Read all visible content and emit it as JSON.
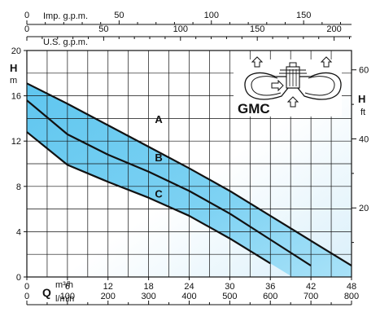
{
  "chart_data": {
    "type": "line",
    "model": "GMC",
    "x": {
      "label": "Q",
      "ticks_m3h": [
        "0",
        "6",
        "12",
        "18",
        "24",
        "30",
        "36",
        "42",
        "48"
      ],
      "unit_m3h": "m³/h",
      "ticks_lmin": [
        "0",
        "100",
        "200",
        "300",
        "400",
        "500",
        "600",
        "700",
        "800"
      ],
      "unit_lmin": "l/min",
      "range_m3h": [
        0,
        48
      ]
    },
    "top_scales": [
      {
        "label": "Imp. g.p.m.",
        "ticks": [
          "0",
          "50",
          "100",
          "150"
        ],
        "range": [
          0,
          175.95
        ]
      },
      {
        "label": "U.S. g.p.m.",
        "ticks": [
          "0",
          "50",
          "100",
          "150",
          "200"
        ],
        "range": [
          0,
          211.34
        ]
      }
    ],
    "y_left": {
      "label": "H",
      "unit": "m",
      "ticks": [
        "0",
        "4",
        "8",
        "12",
        "16",
        "20"
      ],
      "range": [
        0,
        20
      ]
    },
    "y_right": {
      "label": "H",
      "unit": "ft",
      "ticks": [
        "20",
        "40",
        "60"
      ],
      "range": [
        0,
        65.6
      ]
    },
    "grid": true,
    "series": [
      {
        "name": "A",
        "x": [
          0,
          6,
          12,
          18,
          24,
          30,
          36,
          42,
          48
        ],
        "y": [
          17.1,
          15.3,
          13.4,
          11.5,
          9.6,
          7.6,
          5.4,
          3.2,
          1.0
        ]
      },
      {
        "name": "B",
        "x": [
          0,
          6,
          12,
          18,
          24,
          30,
          36,
          42
        ],
        "y": [
          15.6,
          12.6,
          10.8,
          9.3,
          7.6,
          5.6,
          3.3,
          1.0
        ]
      },
      {
        "name": "C",
        "x": [
          0,
          6,
          12,
          18,
          24,
          30,
          36
        ],
        "y": [
          12.8,
          9.9,
          8.4,
          7.0,
          5.4,
          3.4,
          1.2
        ]
      }
    ]
  }
}
